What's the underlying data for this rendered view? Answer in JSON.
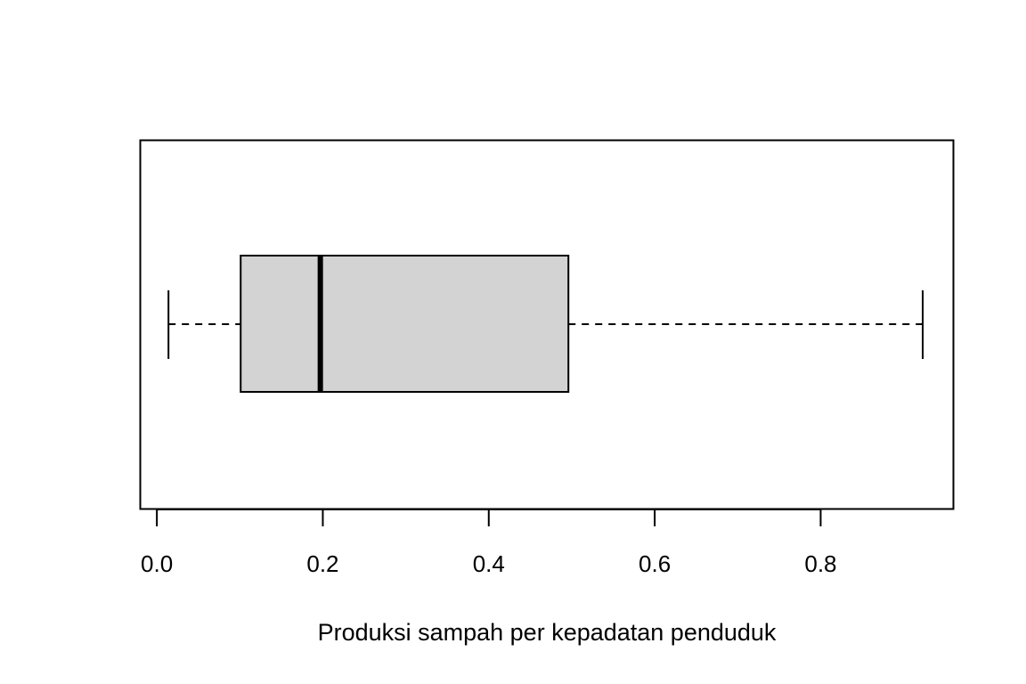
{
  "chart_data": {
    "type": "boxplot",
    "orientation": "horizontal",
    "xlabel": "Produksi sampah per kepadatan penduduk",
    "xlim": [
      -0.02,
      0.96
    ],
    "ticks": [
      0.0,
      0.2,
      0.4,
      0.6,
      0.8
    ],
    "tick_labels": [
      "0.0",
      "0.2",
      "0.4",
      "0.6",
      "0.8"
    ],
    "box": {
      "min": 0.014,
      "q1": 0.101,
      "median": 0.197,
      "q3": 0.496,
      "max": 0.923
    },
    "box_fill": "#d3d3d3",
    "line_color": "#000000",
    "grid": false
  }
}
